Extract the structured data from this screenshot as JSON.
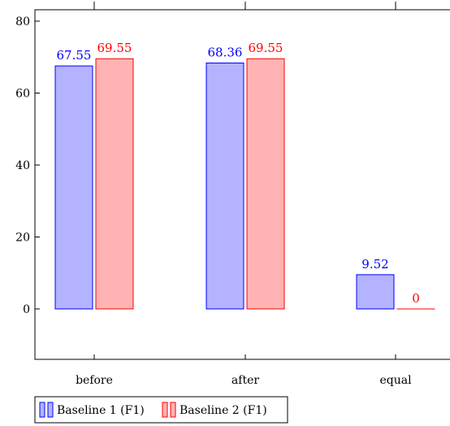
{
  "chart_data": {
    "type": "bar",
    "title": "",
    "xlabel": "",
    "ylabel": "",
    "categories": [
      "before",
      "after",
      "equal"
    ],
    "series": [
      {
        "name": "Baseline 1 (F1)",
        "values": [
          67.55,
          68.36,
          9.52
        ],
        "labels": [
          "67.55",
          "68.36",
          "9.52"
        ],
        "fill": "#b3b3ff",
        "stroke": "#0000ff",
        "label_color": "#0000ff"
      },
      {
        "name": "Baseline 2 (F1)",
        "values": [
          69.55,
          69.55,
          0
        ],
        "labels": [
          "69.55",
          "69.55",
          "0"
        ],
        "fill": "#ffb3b3",
        "stroke": "#ff0000",
        "label_color": "#ff0000"
      }
    ],
    "ylim": [
      -13,
      83
    ],
    "yticks": [
      0,
      20,
      40,
      60,
      80
    ],
    "ytick_labels": [
      "0",
      "20",
      "40",
      "60",
      "80"
    ],
    "grid": false,
    "legend_position": "bottom-left"
  }
}
